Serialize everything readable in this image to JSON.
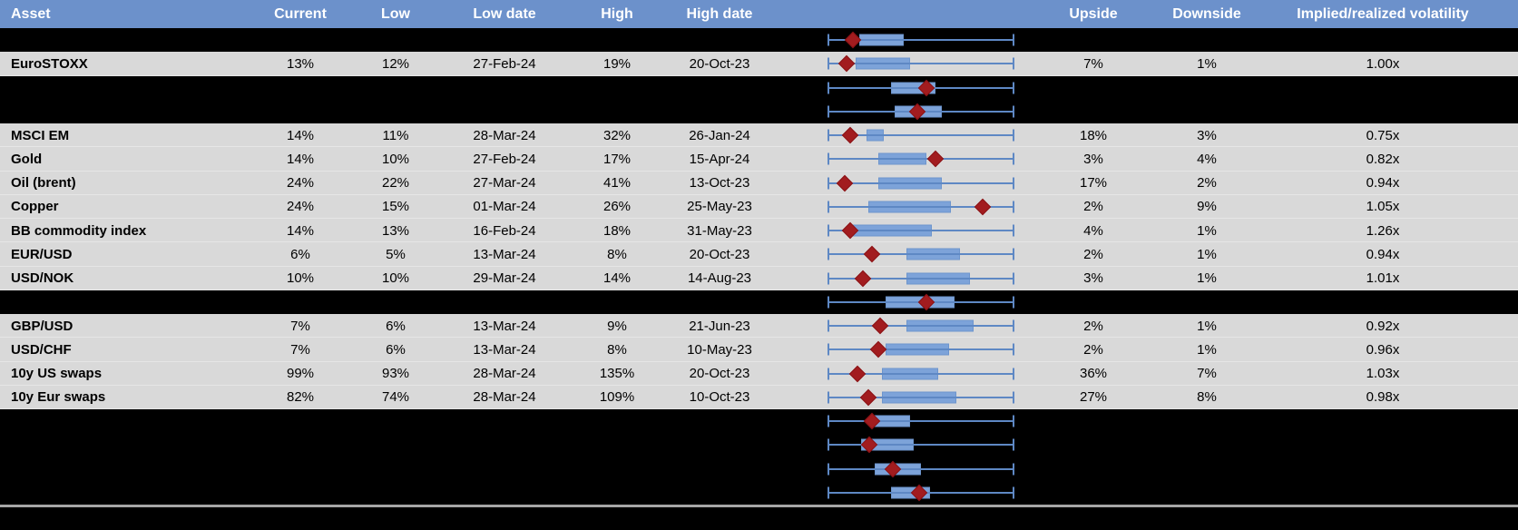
{
  "colors": {
    "header_bg": "#6c91cb",
    "row_bg": "#d9d9d9",
    "redacted_bg": "#000000",
    "whisker": "#5e88c4",
    "box_fill": "#7da3d9",
    "box_border": "#6d95cd",
    "diamond": "#a21c1f",
    "diamond_border": "#8b1215",
    "separator": "#a6a6a6"
  },
  "chart_data": {
    "type": "table",
    "title": "Implied volatility table with box-and-whisker range charts per asset",
    "columns": [
      "Asset",
      "Current",
      "Low",
      "Low date",
      "High",
      "High date",
      "Upside",
      "Downside",
      "Implied/realized volatility"
    ],
    "boxplot_legend": {
      "marker": "red diamond = current level",
      "box": "blue box = interquartile range",
      "whisker": "thin line with end caps = full low-high range",
      "units": "box_start/box_end/diamond are percent (0-100) of the whisker span"
    },
    "rows": [
      {
        "kind": "redacted",
        "boxplot": {
          "box_start": 17,
          "box_end": 41,
          "diamond": 13.5
        }
      },
      {
        "kind": "data",
        "asset": "EuroSTOXX",
        "current": "13%",
        "low": "12%",
        "low_date": "27-Feb-24",
        "high": "19%",
        "high_date": "20-Oct-23",
        "upside": "7%",
        "downside": "1%",
        "implied_realized": "1.00x",
        "boxplot": {
          "box_start": 15,
          "box_end": 44,
          "diamond": 10
        }
      },
      {
        "kind": "redacted",
        "boxplot": {
          "box_start": 34,
          "box_end": 58,
          "diamond": 53
        }
      },
      {
        "kind": "redacted",
        "boxplot": {
          "box_start": 36,
          "box_end": 61,
          "diamond": 48
        }
      },
      {
        "kind": "data",
        "asset": "MSCI EM",
        "current": "14%",
        "low": "11%",
        "low_date": "28-Mar-24",
        "high": "32%",
        "high_date": "26-Jan-24",
        "upside": "18%",
        "downside": "3%",
        "implied_realized": "0.75x",
        "boxplot": {
          "box_start": 21,
          "box_end": 30,
          "diamond": 12
        }
      },
      {
        "kind": "data",
        "asset": "Gold",
        "current": "14%",
        "low": "10%",
        "low_date": "27-Feb-24",
        "high": "17%",
        "high_date": "15-Apr-24",
        "upside": "3%",
        "downside": "4%",
        "implied_realized": "0.82x",
        "boxplot": {
          "box_start": 27,
          "box_end": 53,
          "diamond": 58
        }
      },
      {
        "kind": "data",
        "asset": "Oil (brent)",
        "current": "24%",
        "low": "22%",
        "low_date": "27-Mar-24",
        "high": "41%",
        "high_date": "13-Oct-23",
        "upside": "17%",
        "downside": "2%",
        "implied_realized": "0.94x",
        "boxplot": {
          "box_start": 27,
          "box_end": 61,
          "diamond": 9
        }
      },
      {
        "kind": "data",
        "asset": "Copper",
        "current": "24%",
        "low": "15%",
        "low_date": "01-Mar-24",
        "high": "26%",
        "high_date": "25-May-23",
        "upside": "2%",
        "downside": "9%",
        "implied_realized": "1.05x",
        "boxplot": {
          "box_start": 22,
          "box_end": 66,
          "diamond": 83
        }
      },
      {
        "kind": "data",
        "asset": "BB commodity index",
        "current": "14%",
        "low": "13%",
        "low_date": "16-Feb-24",
        "high": "18%",
        "high_date": "31-May-23",
        "upside": "4%",
        "downside": "1%",
        "implied_realized": "1.26x",
        "boxplot": {
          "box_start": 13,
          "box_end": 56,
          "diamond": 12
        }
      },
      {
        "kind": "data",
        "asset": "EUR/USD",
        "current": "6%",
        "low": "5%",
        "low_date": "13-Mar-24",
        "high": "8%",
        "high_date": "20-Oct-23",
        "upside": "2%",
        "downside": "1%",
        "implied_realized": "0.94x",
        "boxplot": {
          "box_start": 42,
          "box_end": 71,
          "diamond": 24
        }
      },
      {
        "kind": "data",
        "asset": "USD/NOK",
        "current": "10%",
        "low": "10%",
        "low_date": "29-Mar-24",
        "high": "14%",
        "high_date": "14-Aug-23",
        "upside": "3%",
        "downside": "1%",
        "implied_realized": "1.01x",
        "boxplot": {
          "box_start": 42,
          "box_end": 76,
          "diamond": 19
        }
      },
      {
        "kind": "redacted",
        "boxplot": {
          "box_start": 31,
          "box_end": 68,
          "diamond": 53
        }
      },
      {
        "kind": "data",
        "asset": "GBP/USD",
        "current": "7%",
        "low": "6%",
        "low_date": "13-Mar-24",
        "high": "9%",
        "high_date": "21-Jun-23",
        "upside": "2%",
        "downside": "1%",
        "implied_realized": "0.92x",
        "boxplot": {
          "box_start": 42,
          "box_end": 78,
          "diamond": 28
        }
      },
      {
        "kind": "data",
        "asset": "USD/CHF",
        "current": "7%",
        "low": "6%",
        "low_date": "13-Mar-24",
        "high": "8%",
        "high_date": "10-May-23",
        "upside": "2%",
        "downside": "1%",
        "implied_realized": "0.96x",
        "boxplot": {
          "box_start": 31,
          "box_end": 65,
          "diamond": 27
        }
      },
      {
        "kind": "data",
        "asset": "10y US swaps",
        "current": "99%",
        "low": "93%",
        "low_date": "28-Mar-24",
        "high": "135%",
        "high_date": "20-Oct-23",
        "upside": "36%",
        "downside": "7%",
        "implied_realized": "1.03x",
        "boxplot": {
          "box_start": 29,
          "box_end": 59,
          "diamond": 16
        }
      },
      {
        "kind": "data",
        "asset": "10y Eur swaps",
        "current": "82%",
        "low": "74%",
        "low_date": "28-Mar-24",
        "high": "109%",
        "high_date": "10-Oct-23",
        "upside": "27%",
        "downside": "8%",
        "implied_realized": "0.98x",
        "boxplot": {
          "box_start": 29,
          "box_end": 69,
          "diamond": 22
        }
      },
      {
        "kind": "redacted",
        "boxplot": {
          "box_start": 23,
          "box_end": 44,
          "diamond": 24
        }
      },
      {
        "kind": "redacted",
        "boxplot": {
          "box_start": 18,
          "box_end": 46,
          "diamond": 22.5
        }
      },
      {
        "kind": "redacted",
        "boxplot": {
          "box_start": 25,
          "box_end": 50,
          "diamond": 35
        }
      },
      {
        "kind": "redacted",
        "boxplot": {
          "box_start": 34,
          "box_end": 55,
          "diamond": 49
        }
      }
    ]
  }
}
